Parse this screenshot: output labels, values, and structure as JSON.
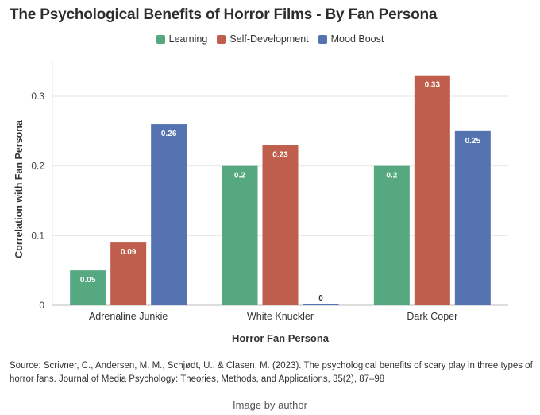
{
  "chart_data": {
    "type": "bar",
    "title": "The Psychological Benefits of Horror Films - By Fan Persona",
    "xlabel": "Horror Fan Persona",
    "ylabel": "Correlation with Fan Persona",
    "categories": [
      "Adrenaline Junkie",
      "White Knuckler",
      "Dark Coper"
    ],
    "series": [
      {
        "name": "Learning",
        "color": "#55A880",
        "values": [
          0.05,
          0.2,
          0.2
        ],
        "labels": [
          "0.05",
          "0.2",
          "0.2"
        ]
      },
      {
        "name": "Self-Development",
        "color": "#C05E4D",
        "values": [
          0.09,
          0.23,
          0.33
        ],
        "labels": [
          "0.09",
          "0.23",
          "0.33"
        ]
      },
      {
        "name": "Mood Boost",
        "color": "#5573B0",
        "values": [
          0.26,
          0.0,
          0.25
        ],
        "labels": [
          "0.26",
          "0",
          "0.25"
        ]
      }
    ],
    "ylim": [
      0,
      0.34
    ],
    "yticks": [
      0,
      0.1,
      0.2,
      0.3
    ],
    "ytick_labels": [
      "0",
      "0.1",
      "0.2",
      "0.3"
    ],
    "grid": true,
    "legend_position": "top-center"
  },
  "source": "Source: Scrivner, C., Andersen, M. M., Schjødt, U., & Clasen, M. (2023). The psychological benefits of scary play in three types of horror fans. Journal of Media Psychology: Theories, Methods, and Applications, 35(2), 87–98",
  "credit": "Image by author"
}
